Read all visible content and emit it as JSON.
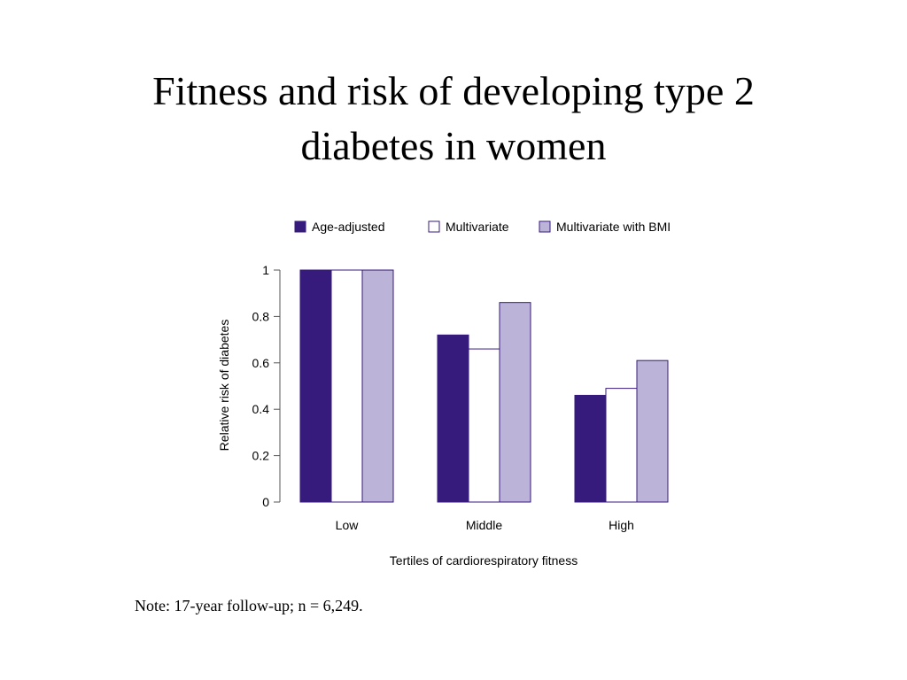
{
  "slide": {
    "title_line1": "Fitness and risk of developing type 2",
    "title_line2": "diabetes in women",
    "note": "Note: 17-year follow-up; n = 6,249."
  },
  "chart_data": {
    "type": "bar",
    "title": "",
    "xlabel": "Tertiles of cardiorespiratory fitness",
    "ylabel": "Relative risk of diabetes",
    "categories": [
      "Low",
      "Middle",
      "High"
    ],
    "ylim": [
      0,
      1
    ],
    "yticks": [
      "0",
      "0.2",
      "0.4",
      "0.6",
      "0.8",
      "1"
    ],
    "legend_position": "top",
    "grid": false,
    "series": [
      {
        "name": "Age-adjusted",
        "color": "#361a7c",
        "values": [
          1.0,
          0.72,
          0.46
        ]
      },
      {
        "name": "Multivariate",
        "color": "#ffffff",
        "values": [
          1.0,
          0.66,
          0.49
        ]
      },
      {
        "name": "Multivariate with BMI",
        "color": "#bcb4d8",
        "values": [
          1.0,
          0.86,
          0.61
        ]
      }
    ]
  }
}
